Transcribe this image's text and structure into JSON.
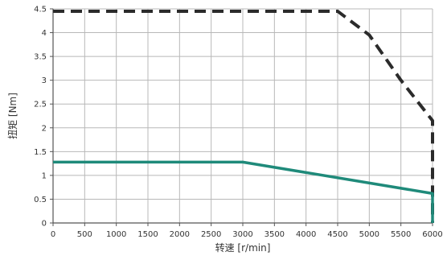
{
  "chart_data": {
    "type": "line",
    "title": "",
    "xlabel": "转速 [r/min]",
    "ylabel": "扭矩 [Nm]",
    "xlim": [
      0,
      6000
    ],
    "ylim": [
      0,
      4.5
    ],
    "x_ticks": [
      0,
      500,
      1000,
      1500,
      2000,
      2500,
      3000,
      3500,
      4000,
      4500,
      5000,
      5500,
      6000
    ],
    "y_ticks": [
      0,
      0.5,
      1,
      1.5,
      2,
      2.5,
      3,
      3.5,
      4,
      4.5
    ],
    "x_tick_labels": [
      "0",
      "500",
      "1000",
      "1500",
      "2000",
      "2500",
      "3000",
      "3500",
      "4000",
      "4500",
      "5000",
      "5500",
      "6000"
    ],
    "y_tick_labels": [
      "0",
      "0.5",
      "1",
      "1.5",
      "2",
      "2.5",
      "3",
      "3.5",
      "4",
      "4.5"
    ],
    "grid": true,
    "legend": "none",
    "series": [
      {
        "style": "dashed",
        "color": "#2b2b2b",
        "x": [
          0,
          4500,
          5000,
          5500,
          6000,
          6000
        ],
        "y": [
          4.45,
          4.45,
          3.95,
          3.0,
          2.15,
          0
        ]
      },
      {
        "style": "solid",
        "color": "#1f8a7a",
        "x": [
          0,
          3000,
          6000,
          6000
        ],
        "y": [
          1.28,
          1.28,
          0.62,
          0
        ]
      }
    ]
  }
}
